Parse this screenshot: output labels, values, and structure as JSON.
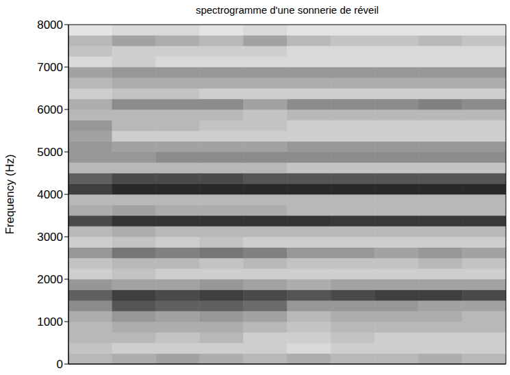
{
  "chart_data": {
    "type": "heatmap",
    "title": "spectrogramme d'une sonnerie de réveil",
    "y_label": "Frequency (Hz)",
    "xlim": [
      0,
      10
    ],
    "ylim": [
      0,
      8000
    ],
    "yticks": [
      0,
      1000,
      2000,
      3000,
      4000,
      5000,
      6000,
      7000,
      8000
    ],
    "tick_labels": "y",
    "grid": false,
    "x_bins": [
      0,
      1,
      2,
      3,
      4,
      5,
      6,
      7,
      8,
      9,
      10
    ],
    "y_bins": [
      0,
      250,
      500,
      750,
      1000,
      1250,
      1500,
      1750,
      2000,
      2250,
      2500,
      2750,
      3000,
      3250,
      3500,
      3750,
      4000,
      4250,
      4500,
      4750,
      5000,
      5250,
      5500,
      5750,
      6000,
      6250,
      6500,
      6750,
      7000,
      7250,
      7500,
      7750,
      8000
    ],
    "cells": [
      [
        0.3,
        0.35,
        0.4,
        0.35,
        0.3,
        0.35,
        0.3,
        0.3,
        0.35,
        0.3
      ],
      [
        0.25,
        0.2,
        0.2,
        0.2,
        0.2,
        0.15,
        0.2,
        0.2,
        0.2,
        0.2
      ],
      [
        0.3,
        0.3,
        0.25,
        0.3,
        0.2,
        0.2,
        0.25,
        0.2,
        0.2,
        0.2
      ],
      [
        0.3,
        0.35,
        0.35,
        0.35,
        0.3,
        0.25,
        0.3,
        0.3,
        0.3,
        0.3
      ],
      [
        0.35,
        0.45,
        0.4,
        0.45,
        0.4,
        0.3,
        0.35,
        0.35,
        0.35,
        0.3
      ],
      [
        0.5,
        0.75,
        0.7,
        0.7,
        0.65,
        0.45,
        0.45,
        0.45,
        0.4,
        0.4
      ],
      [
        0.7,
        0.85,
        0.8,
        0.85,
        0.8,
        0.75,
        0.8,
        0.85,
        0.85,
        0.8
      ],
      [
        0.45,
        0.4,
        0.4,
        0.45,
        0.4,
        0.35,
        0.4,
        0.4,
        0.4,
        0.4
      ],
      [
        0.2,
        0.25,
        0.2,
        0.2,
        0.2,
        0.2,
        0.2,
        0.2,
        0.2,
        0.2
      ],
      [
        0.25,
        0.3,
        0.3,
        0.25,
        0.3,
        0.25,
        0.25,
        0.25,
        0.3,
        0.25
      ],
      [
        0.45,
        0.6,
        0.55,
        0.6,
        0.55,
        0.45,
        0.45,
        0.4,
        0.45,
        0.4
      ],
      [
        0.2,
        0.25,
        0.2,
        0.25,
        0.2,
        0.2,
        0.2,
        0.2,
        0.2,
        0.2
      ],
      [
        0.3,
        0.35,
        0.3,
        0.3,
        0.3,
        0.3,
        0.3,
        0.3,
        0.3,
        0.3
      ],
      [
        0.8,
        0.9,
        0.9,
        0.9,
        0.9,
        0.9,
        0.88,
        0.88,
        0.88,
        0.88
      ],
      [
        0.35,
        0.4,
        0.35,
        0.35,
        0.35,
        0.3,
        0.3,
        0.3,
        0.3,
        0.3
      ],
      [
        0.3,
        0.3,
        0.3,
        0.3,
        0.3,
        0.3,
        0.3,
        0.3,
        0.3,
        0.3
      ],
      [
        0.85,
        0.95,
        0.95,
        0.95,
        0.95,
        0.95,
        0.95,
        0.95,
        0.95,
        0.95
      ],
      [
        0.7,
        0.8,
        0.8,
        0.8,
        0.75,
        0.75,
        0.75,
        0.75,
        0.75,
        0.75
      ],
      [
        0.3,
        0.3,
        0.3,
        0.3,
        0.3,
        0.25,
        0.25,
        0.25,
        0.25,
        0.25
      ],
      [
        0.45,
        0.45,
        0.5,
        0.5,
        0.5,
        0.5,
        0.5,
        0.5,
        0.5,
        0.5
      ],
      [
        0.45,
        0.4,
        0.4,
        0.4,
        0.4,
        0.45,
        0.45,
        0.45,
        0.45,
        0.45
      ],
      [
        0.4,
        0.2,
        0.2,
        0.2,
        0.2,
        0.2,
        0.2,
        0.2,
        0.2,
        0.2
      ],
      [
        0.45,
        0.3,
        0.3,
        0.25,
        0.25,
        0.2,
        0.2,
        0.2,
        0.2,
        0.2
      ],
      [
        0.3,
        0.3,
        0.3,
        0.3,
        0.25,
        0.3,
        0.3,
        0.3,
        0.3,
        0.3
      ],
      [
        0.35,
        0.5,
        0.5,
        0.5,
        0.4,
        0.5,
        0.5,
        0.5,
        0.55,
        0.5
      ],
      [
        0.2,
        0.25,
        0.25,
        0.2,
        0.2,
        0.2,
        0.2,
        0.2,
        0.2,
        0.2
      ],
      [
        0.3,
        0.35,
        0.35,
        0.35,
        0.35,
        0.35,
        0.35,
        0.35,
        0.35,
        0.35
      ],
      [
        0.4,
        0.45,
        0.45,
        0.45,
        0.45,
        0.45,
        0.45,
        0.45,
        0.45,
        0.45
      ],
      [
        0.15,
        0.2,
        0.15,
        0.15,
        0.15,
        0.15,
        0.15,
        0.15,
        0.15,
        0.15
      ],
      [
        0.25,
        0.2,
        0.2,
        0.2,
        0.2,
        0.15,
        0.15,
        0.15,
        0.15,
        0.15
      ],
      [
        0.3,
        0.4,
        0.35,
        0.3,
        0.4,
        0.3,
        0.25,
        0.25,
        0.3,
        0.25
      ],
      [
        0.1,
        0.15,
        0.15,
        0.1,
        0.15,
        0.1,
        0.1,
        0.1,
        0.1,
        0.1
      ]
    ]
  }
}
